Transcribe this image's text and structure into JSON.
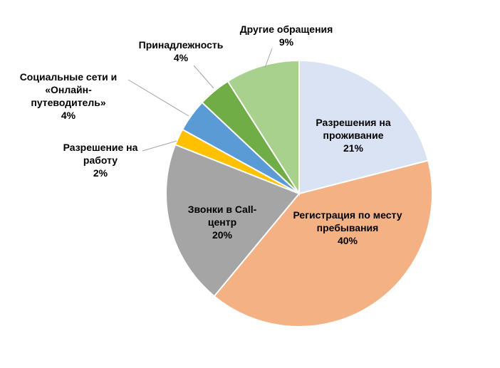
{
  "chart_data": {
    "type": "pie",
    "categories": [
      "Разрешения на проживание",
      "Регистрация по месту пребывания",
      "Звонки в Call-центр",
      "Разрешение на работу",
      "Социальные сети и «Онлайн-путеводитель»",
      "Принадлежность",
      "Другие обращения"
    ],
    "values": [
      21,
      40,
      20,
      2,
      4,
      4,
      9
    ],
    "value_labels": [
      "21%",
      "40%",
      "20%",
      "2%",
      "4%",
      "4%",
      "9%"
    ],
    "colors": [
      "#dae3f3",
      "#f4b183",
      "#a5a5a5",
      "#ffc000",
      "#5b9bd5",
      "#70ad47",
      "#a9d18e"
    ]
  }
}
